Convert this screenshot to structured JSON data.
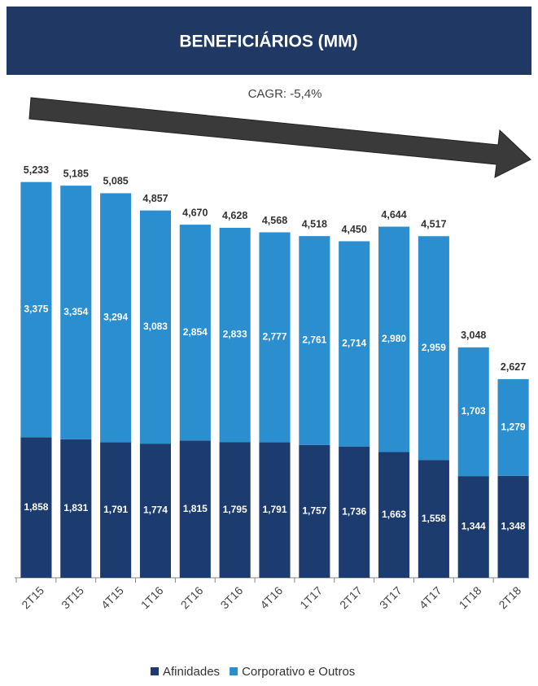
{
  "chart_data": {
    "type": "stacked-bar",
    "title": "BENEFICIÁRIOS (MM)",
    "annotation": "CAGR: -5,4%",
    "categories": [
      "2T15",
      "3T15",
      "4T15",
      "1T16",
      "2T16",
      "3T16",
      "4T16",
      "1T17",
      "2T17",
      "3T17",
      "4T17",
      "1T18",
      "2T18"
    ],
    "series": [
      {
        "name": "Afinidades",
        "color": "#1c3b6e",
        "values": [
          1.858,
          1.831,
          1.791,
          1.774,
          1.815,
          1.795,
          1.791,
          1.757,
          1.736,
          1.663,
          1.558,
          1.344,
          1.348
        ],
        "value_labels": [
          "1,858",
          "1,831",
          "1,791",
          "1,774",
          "1,815",
          "1,795",
          "1,791",
          "1,757",
          "1,736",
          "1,663",
          "1,558",
          "1,344",
          "1,348"
        ]
      },
      {
        "name": "Corporativo e Outros",
        "color": "#2b8fcf",
        "values": [
          3.375,
          3.354,
          3.294,
          3.083,
          2.854,
          2.833,
          2.777,
          2.761,
          2.714,
          2.98,
          2.959,
          1.703,
          1.279
        ],
        "value_labels": [
          "3,375",
          "3,354",
          "3,294",
          "3,083",
          "2,854",
          "2,833",
          "2,777",
          "2,761",
          "2,714",
          "2,980",
          "2,959",
          "1,703",
          "1,279"
        ]
      }
    ],
    "totals": {
      "values": [
        5.233,
        5.185,
        5.085,
        4.857,
        4.67,
        4.628,
        4.568,
        4.518,
        4.45,
        4.644,
        4.517,
        3.048,
        2.627
      ],
      "value_labels": [
        "5,233",
        "5,185",
        "5,085",
        "4,857",
        "4,670",
        "4,628",
        "4,568",
        "4,518",
        "4,450",
        "4,644",
        "4,517",
        "3,048",
        "2,627"
      ]
    },
    "ylim": [
      0,
      5.8
    ]
  }
}
